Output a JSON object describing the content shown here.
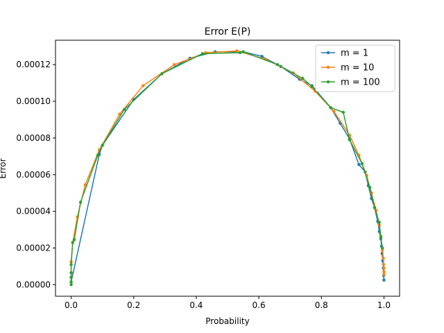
{
  "chart_data": {
    "type": "line",
    "title": "Error E(P)",
    "xlabel": "Probability",
    "ylabel": "Error",
    "xlim": [
      -0.05,
      1.05
    ],
    "ylim": [
      -6.3e-06,
      0.0001333
    ],
    "xticks": [
      0.0,
      0.2,
      0.4,
      0.6,
      0.8,
      1.0
    ],
    "xtick_labels": [
      "0.0",
      "0.2",
      "0.4",
      "0.6",
      "0.8",
      "1.0"
    ],
    "yticks": [
      0,
      2e-05,
      4e-05,
      6e-05,
      8e-05,
      0.0001,
      0.00012
    ],
    "ytick_labels": [
      "0.00000",
      "0.00002",
      "0.00004",
      "0.00006",
      "0.00008",
      "0.00010",
      "0.00012"
    ],
    "grid": false,
    "legend_position": "top-right",
    "series": [
      {
        "name": "m = 1",
        "color": "#1f77b4",
        "x": [
          0.0,
          0.09,
          0.1,
          0.2,
          0.29,
          0.38,
          0.46,
          0.55,
          0.61,
          0.67,
          0.73,
          0.77,
          0.83,
          0.86,
          0.89,
          0.92,
          0.94,
          0.95,
          0.96,
          0.97,
          0.98,
          0.985,
          0.99,
          0.992,
          0.994,
          0.996,
          0.998,
          0.999,
          1.0
        ],
        "y": [
          1.5e-06,
          7.1e-05,
          7.6e-05,
          0.000101,
          0.000115,
          0.0001235,
          0.000127,
          0.000127,
          0.0001245,
          0.000119,
          0.000112,
          0.0001085,
          9.65e-05,
          8.8e-05,
          7.95e-05,
          6.55e-05,
          6.15e-05,
          5.4e-05,
          4.7e-05,
          4.2e-05,
          3.45e-05,
          2.9e-05,
          2.5e-05,
          2.1e-05,
          1.7e-05,
          1.3e-05,
          9e-06,
          5e-06,
          2.5e-06
        ]
      },
      {
        "name": "m = 10",
        "color": "#ff7f0e",
        "x": [
          0.0,
          0.0,
          0.005,
          0.02,
          0.045,
          0.09,
          0.155,
          0.23,
          0.33,
          0.43,
          0.53,
          0.62,
          0.71,
          0.78,
          0.84,
          0.89,
          0.92,
          0.945,
          0.96,
          0.975,
          0.985,
          0.99,
          0.995,
          0.998,
          0.999,
          1.0,
          1.0,
          1.0
        ],
        "y": [
          4e-06,
          1.25e-05,
          2.3e-05,
          3.7e-05,
          5.45e-05,
          7.35e-05,
          9.3e-05,
          0.0001085,
          0.00012,
          0.0001265,
          0.0001275,
          0.000123,
          0.0001155,
          0.0001055,
          9.45e-05,
          8.15e-05,
          7.05e-05,
          5.95e-05,
          5e-05,
          4.05e-05,
          3.25e-05,
          2.65e-05,
          1.9e-05,
          1.45e-05,
          1.1e-05,
          9e-06,
          7e-06,
          5.5e-06
        ]
      },
      {
        "name": "m = 100",
        "color": "#2ca02c",
        "x": [
          0.0,
          0.0,
          0.0,
          0.0,
          0.0,
          0.005,
          0.01,
          0.03,
          0.085,
          0.1,
          0.17,
          0.29,
          0.42,
          0.54,
          0.55,
          0.66,
          0.74,
          0.77,
          0.83,
          0.87,
          0.89,
          0.93,
          0.955,
          0.97,
          0.985,
          0.99,
          0.995
        ],
        "y": [
          0.0,
          1.5e-06,
          4e-06,
          6.5e-06,
          1.1e-05,
          2.3e-05,
          2.45e-05,
          4.5e-05,
          7.05e-05,
          7.6e-05,
          9.55e-05,
          0.000115,
          0.000126,
          0.0001265,
          0.000127,
          0.00012,
          0.0001125,
          0.000108,
          9.65e-05,
          9.4e-05,
          7.9e-05,
          6.6e-05,
          5.3e-05,
          4.2e-05,
          3.4e-05,
          2.6e-05,
          2e-05
        ]
      }
    ]
  }
}
